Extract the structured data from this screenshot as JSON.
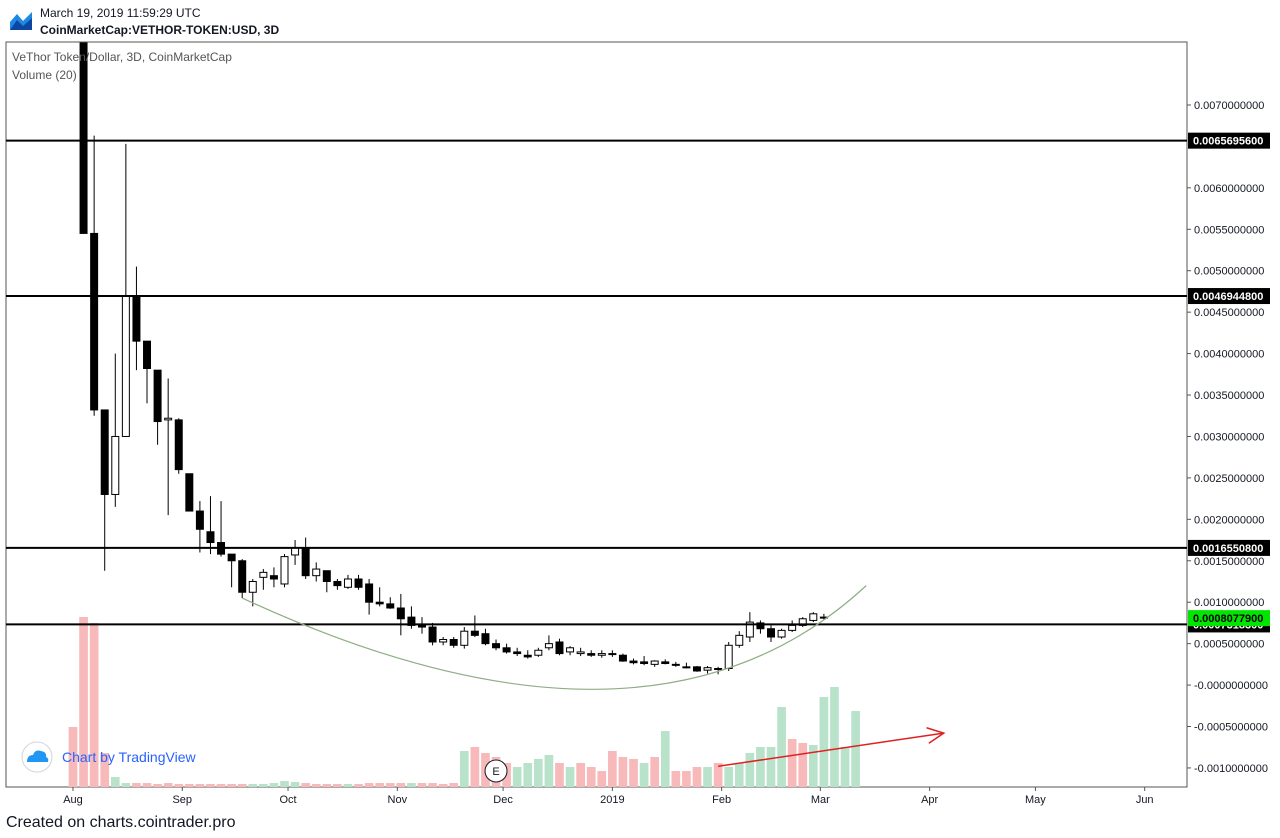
{
  "header": {
    "timestamp": "March 19, 2019 11:59:29 UTC",
    "symbol": "CoinMarketCap:VETHOR-TOKEN:USD, 3D",
    "logo_icon": "tradingview-chart-logo-icon"
  },
  "footer": {
    "text": "Created on charts.cointrader.pro"
  },
  "watermark": {
    "text": "Chart by TradingView",
    "icon": "tradingview-cloud-icon"
  },
  "chart_data": {
    "type": "candlestick",
    "title": "VeThor Token/Dollar, 3D, CoinMarketCap",
    "indicator": "Volume (20)",
    "y_ticks": [
      "0.0070000000",
      "0.0060000000",
      "0.0055000000",
      "0.0050000000",
      "0.0045000000",
      "0.0040000000",
      "0.0035000000",
      "0.0030000000",
      "0.0025000000",
      "0.0020000000",
      "0.0015000000",
      "0.0010000000",
      "0.0005000000",
      "-0.0000000000",
      "-0.0005000000",
      "-0.0010000000"
    ],
    "y_tick_values": [
      0.007,
      0.006,
      0.0055,
      0.005,
      0.0045,
      0.004,
      0.0035,
      0.003,
      0.0025,
      0.002,
      0.0015,
      0.001,
      0.0005,
      0,
      -0.0005,
      -0.001
    ],
    "y_range": [
      -0.00123,
      0.00776
    ],
    "x_ticks": [
      "Aug",
      "Sep",
      "Oct",
      "Nov",
      "Dec",
      "2019",
      "Feb",
      "Mar",
      "Apr",
      "May",
      "Jun"
    ],
    "x_tick_days": [
      0,
      31,
      61,
      92,
      122,
      153,
      184,
      212,
      243,
      273,
      304
    ],
    "x_range_days": [
      -19,
      316
    ],
    "horizontal_levels": [
      {
        "value": 0.00656956,
        "label": "0.0065695600"
      },
      {
        "value": 0.00469448,
        "label": "0.0046944800"
      },
      {
        "value": 0.00165508,
        "label": "0.0016550800"
      },
      {
        "value": 0.00073183,
        "label": "0.0007318300"
      }
    ],
    "last_price": {
      "value": 0.00080779,
      "label": "0.0008077900"
    },
    "colors": {
      "up_candle": "#ffffff",
      "down_candle": "#000000",
      "candle_border": "#000000",
      "up_volume": "#b9e2cb",
      "down_volume": "#f7b9b9",
      "level_line": "#000000",
      "level_badge": "#000000",
      "last_price_badge": "#00e600",
      "curve": "#8fad86",
      "arrow": "#e02020"
    },
    "candles": {
      "fields": [
        "day",
        "open",
        "high",
        "low",
        "close"
      ],
      "data": [
        [
          3,
          0.0079,
          0.0082,
          0.00545,
          0.00545
        ],
        [
          6,
          0.00545,
          0.00663,
          0.00325,
          0.00332
        ],
        [
          9,
          0.00332,
          0.00332,
          0.00138,
          0.0023
        ],
        [
          12,
          0.0023,
          0.004,
          0.00215,
          0.003
        ],
        [
          15,
          0.003,
          0.00653,
          0.003,
          0.0047
        ],
        [
          18,
          0.0047,
          0.00505,
          0.0038,
          0.00415
        ],
        [
          21,
          0.00415,
          0.00415,
          0.0034,
          0.00382
        ],
        [
          24,
          0.0038,
          0.0038,
          0.0029,
          0.00318
        ],
        [
          27,
          0.0032,
          0.0037,
          0.00205,
          0.00322
        ],
        [
          30,
          0.0032,
          0.00322,
          0.00255,
          0.0026
        ],
        [
          33,
          0.00255,
          0.00255,
          0.0021,
          0.0021
        ],
        [
          36,
          0.0021,
          0.00222,
          0.0016,
          0.00188
        ],
        [
          39,
          0.00185,
          0.00228,
          0.00158,
          0.00172
        ],
        [
          42,
          0.00172,
          0.00222,
          0.00155,
          0.00158
        ],
        [
          45,
          0.00158,
          0.00158,
          0.00118,
          0.0015
        ],
        [
          48,
          0.0015,
          0.00152,
          0.00105,
          0.00112
        ],
        [
          51,
          0.00112,
          0.00128,
          0.00095,
          0.00125
        ],
        [
          54,
          0.0013,
          0.0014,
          0.00115,
          0.00136
        ],
        [
          57,
          0.00132,
          0.00142,
          0.00118,
          0.00128
        ],
        [
          60,
          0.00122,
          0.00158,
          0.00118,
          0.00155
        ],
        [
          63,
          0.00157,
          0.00175,
          0.00145,
          0.00166
        ],
        [
          66,
          0.00166,
          0.00178,
          0.00128,
          0.00132
        ],
        [
          69,
          0.00132,
          0.00148,
          0.00125,
          0.0014
        ],
        [
          72,
          0.00138,
          0.00138,
          0.00112,
          0.00125
        ],
        [
          75,
          0.00125,
          0.00128,
          0.00115,
          0.0012
        ],
        [
          78,
          0.00118,
          0.00133,
          0.00116,
          0.00128
        ],
        [
          81,
          0.00128,
          0.00133,
          0.00115,
          0.00118
        ],
        [
          84,
          0.00122,
          0.00128,
          0.00085,
          0.001
        ],
        [
          87,
          0.001,
          0.00118,
          0.00095,
          0.00098
        ],
        [
          90,
          0.00098,
          0.00106,
          0.00092,
          0.00093
        ],
        [
          93,
          0.00093,
          0.0011,
          0.0006,
          0.0008
        ],
        [
          96,
          0.00082,
          0.00095,
          0.00068,
          0.00072
        ],
        [
          99,
          0.00072,
          0.00082,
          0.00062,
          0.0007
        ],
        [
          102,
          0.0007,
          0.00075,
          0.00048,
          0.00052
        ],
        [
          105,
          0.00052,
          0.00058,
          0.00048,
          0.00055
        ],
        [
          108,
          0.00055,
          0.00058,
          0.00045,
          0.00048
        ],
        [
          111,
          0.00048,
          0.0007,
          0.00044,
          0.00065
        ],
        [
          114,
          0.00065,
          0.00084,
          0.00058,
          0.0006
        ],
        [
          117,
          0.00062,
          0.00068,
          0.00048,
          0.0005
        ],
        [
          120,
          0.0005,
          0.00055,
          0.00042,
          0.00045
        ],
        [
          123,
          0.00045,
          0.0005,
          0.00038,
          0.0004
        ],
        [
          126,
          0.0004,
          0.00045,
          0.00035,
          0.00038
        ],
        [
          129,
          0.00036,
          0.00042,
          0.00032,
          0.00034
        ],
        [
          132,
          0.00036,
          0.00045,
          0.00034,
          0.00042
        ],
        [
          135,
          0.00045,
          0.0006,
          0.00042,
          0.0005
        ],
        [
          138,
          0.00052,
          0.00056,
          0.00036,
          0.00038
        ],
        [
          141,
          0.0004,
          0.00047,
          0.00036,
          0.00045
        ],
        [
          144,
          0.00038,
          0.00045,
          0.00035,
          0.0004
        ],
        [
          147,
          0.00038,
          0.00042,
          0.00034,
          0.00036
        ],
        [
          150,
          0.00036,
          0.00042,
          0.00033,
          0.00038
        ],
        [
          153,
          0.00038,
          0.00042,
          0.00034,
          0.00037
        ],
        [
          156,
          0.00036,
          0.00038,
          0.00028,
          0.00029
        ],
        [
          159,
          0.00029,
          0.00032,
          0.00025,
          0.00027
        ],
        [
          162,
          0.00028,
          0.00035,
          0.00024,
          0.00026
        ],
        [
          165,
          0.00025,
          0.0003,
          0.00022,
          0.00029
        ],
        [
          168,
          0.00028,
          0.00031,
          0.00025,
          0.00026
        ],
        [
          171,
          0.00025,
          0.00028,
          0.00022,
          0.00024
        ],
        [
          174,
          0.00022,
          0.00027,
          0.0002,
          0.00022
        ],
        [
          177,
          0.00022,
          0.00023,
          0.00016,
          0.00017
        ],
        [
          180,
          0.00018,
          0.00023,
          0.00014,
          0.00021
        ],
        [
          183,
          0.00019,
          0.00022,
          0.00013,
          0.0002
        ],
        [
          186,
          0.0002,
          0.00052,
          0.00017,
          0.00048
        ],
        [
          189,
          0.00048,
          0.00065,
          0.00045,
          0.0006
        ],
        [
          192,
          0.00058,
          0.00088,
          0.00052,
          0.00076
        ],
        [
          195,
          0.00075,
          0.00078,
          0.00062,
          0.00068
        ],
        [
          198,
          0.00068,
          0.00072,
          0.00052,
          0.00058
        ],
        [
          201,
          0.00058,
          0.00068,
          0.00056,
          0.00066
        ],
        [
          204,
          0.00066,
          0.00078,
          0.00064,
          0.00072
        ],
        [
          207,
          0.00072,
          0.00082,
          0.0007,
          0.0008
        ],
        [
          210,
          0.00078,
          0.00088,
          0.00076,
          0.00086
        ],
        [
          213,
          0.00082,
          0.00086,
          0.00079,
          0.00081
        ]
      ]
    },
    "volume_bars": {
      "fields": [
        "day",
        "relative_height",
        "direction"
      ],
      "data": [
        [
          0,
          0.3,
          "down"
        ],
        [
          3,
          0.85,
          "down"
        ],
        [
          6,
          0.82,
          "down"
        ],
        [
          9,
          0.17,
          "down"
        ],
        [
          12,
          0.05,
          "up"
        ],
        [
          15,
          0.02,
          "up"
        ],
        [
          18,
          0.02,
          "down"
        ],
        [
          21,
          0.02,
          "down"
        ],
        [
          24,
          0.015,
          "down"
        ],
        [
          27,
          0.02,
          "down"
        ],
        [
          30,
          0.015,
          "down"
        ],
        [
          33,
          0.015,
          "down"
        ],
        [
          36,
          0.015,
          "down"
        ],
        [
          39,
          0.015,
          "down"
        ],
        [
          42,
          0.015,
          "down"
        ],
        [
          45,
          0.015,
          "down"
        ],
        [
          48,
          0.015,
          "down"
        ],
        [
          51,
          0.015,
          "up"
        ],
        [
          54,
          0.015,
          "up"
        ],
        [
          57,
          0.02,
          "up"
        ],
        [
          60,
          0.03,
          "up"
        ],
        [
          63,
          0.025,
          "up"
        ],
        [
          66,
          0.02,
          "down"
        ],
        [
          69,
          0.015,
          "down"
        ],
        [
          72,
          0.015,
          "down"
        ],
        [
          75,
          0.015,
          "down"
        ],
        [
          78,
          0.015,
          "up"
        ],
        [
          81,
          0.015,
          "down"
        ],
        [
          84,
          0.02,
          "down"
        ],
        [
          87,
          0.02,
          "down"
        ],
        [
          90,
          0.02,
          "down"
        ],
        [
          93,
          0.02,
          "down"
        ],
        [
          96,
          0.02,
          "up"
        ],
        [
          99,
          0.02,
          "down"
        ],
        [
          102,
          0.02,
          "down"
        ],
        [
          105,
          0.015,
          "down"
        ],
        [
          108,
          0.02,
          "down"
        ],
        [
          111,
          0.18,
          "up"
        ],
        [
          114,
          0.2,
          "down"
        ],
        [
          117,
          0.17,
          "down"
        ],
        [
          120,
          0.15,
          "down"
        ],
        [
          123,
          0.12,
          "down"
        ],
        [
          126,
          0.1,
          "up"
        ],
        [
          129,
          0.12,
          "up"
        ],
        [
          132,
          0.14,
          "up"
        ],
        [
          135,
          0.16,
          "up"
        ],
        [
          138,
          0.12,
          "down"
        ],
        [
          141,
          0.1,
          "up"
        ],
        [
          144,
          0.12,
          "down"
        ],
        [
          147,
          0.1,
          "down"
        ],
        [
          150,
          0.08,
          "down"
        ],
        [
          153,
          0.18,
          "down"
        ],
        [
          156,
          0.15,
          "down"
        ],
        [
          159,
          0.14,
          "down"
        ],
        [
          162,
          0.12,
          "up"
        ],
        [
          165,
          0.15,
          "down"
        ],
        [
          168,
          0.28,
          "up"
        ],
        [
          171,
          0.08,
          "down"
        ],
        [
          174,
          0.08,
          "down"
        ],
        [
          177,
          0.1,
          "down"
        ],
        [
          180,
          0.1,
          "up"
        ],
        [
          183,
          0.12,
          "down"
        ],
        [
          186,
          0.1,
          "up"
        ],
        [
          189,
          0.12,
          "up"
        ],
        [
          192,
          0.17,
          "up"
        ],
        [
          195,
          0.2,
          "up"
        ],
        [
          198,
          0.2,
          "up"
        ],
        [
          201,
          0.4,
          "up"
        ],
        [
          204,
          0.24,
          "down"
        ],
        [
          207,
          0.22,
          "down"
        ],
        [
          210,
          0.21,
          "up"
        ],
        [
          213,
          0.45,
          "up"
        ],
        [
          216,
          0.5,
          "up"
        ],
        [
          219,
          0.2,
          "up"
        ],
        [
          222,
          0.38,
          "up"
        ]
      ]
    },
    "annotations": {
      "curve": {
        "points": [
          [
            48,
            0.00105
          ],
          [
            150,
            -5e-05
          ],
          [
            225,
            0.0012
          ]
        ]
      },
      "arrow": {
        "from": [
          183,
          -0.00098
        ],
        "to": [
          247,
          -0.00058
        ]
      },
      "event_marker": {
        "day": 120,
        "label": "E"
      }
    }
  }
}
